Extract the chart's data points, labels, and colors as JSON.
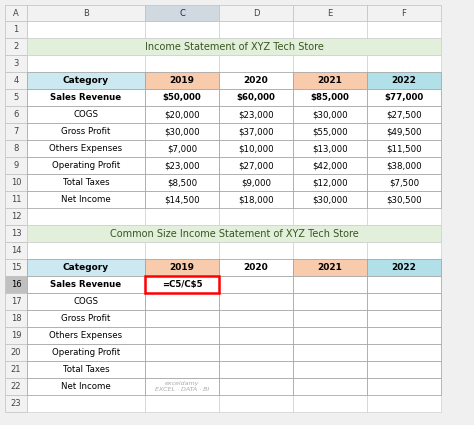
{
  "title1": "Income Statement of XYZ Tech Store",
  "title2": "Common Size Income Statement of XYZ Tech Store",
  "col_headers": [
    "Category",
    "2019",
    "2020",
    "2021",
    "2022"
  ],
  "table1_rows": [
    [
      "Sales Revenue",
      "$50,000",
      "$60,000",
      "$85,000",
      "$77,000"
    ],
    [
      "COGS",
      "$20,000",
      "$23,000",
      "$30,000",
      "$27,500"
    ],
    [
      "Gross Profit",
      "$30,000",
      "$37,000",
      "$55,000",
      "$49,500"
    ],
    [
      "Others Expenses",
      "$7,000",
      "$10,000",
      "$13,000",
      "$11,500"
    ],
    [
      "Operating Profit",
      "$23,000",
      "$27,000",
      "$42,000",
      "$38,000"
    ],
    [
      "Total Taxes",
      "$8,500",
      "$9,000",
      "$12,000",
      "$7,500"
    ],
    [
      "Net Income",
      "$14,500",
      "$18,000",
      "$30,000",
      "$30,500"
    ]
  ],
  "table2_rows": [
    [
      "Sales Revenue",
      "=C5/C$5",
      "",
      "",
      ""
    ],
    [
      "COGS",
      "",
      "",
      "",
      ""
    ],
    [
      "Gross Profit",
      "",
      "",
      "",
      ""
    ],
    [
      "Others Expenses",
      "",
      "",
      "",
      ""
    ],
    [
      "Operating Profit",
      "",
      "",
      "",
      ""
    ],
    [
      "Total Taxes",
      "",
      "",
      "",
      ""
    ],
    [
      "Net Income",
      "",
      "",
      "",
      ""
    ]
  ],
  "header_bg_category": "#cce8f0",
  "header_bg_2019": "#f8cbad",
  "header_bg_2020": "#ffffff",
  "header_bg_2021": "#f8cbad",
  "header_bg_2022": "#b2e0e8",
  "title_bg": "#e2efda",
  "title_text_color": "#375623",
  "row_num_bg": "#f2f2f2",
  "row_num_selected_bg": "#c0c0c0",
  "col_header_bg": "#f2f2f2",
  "col_header_selected_bg": "#d0d8e0",
  "grid_color": "#d0d0d0",
  "border_color": "#a0a0a0",
  "formula_cell_border_color": "#ff0000",
  "excel_col_letters": [
    "A",
    "B",
    "C",
    "D",
    "E",
    "F"
  ],
  "watermark_text": "exceldamy",
  "watermark_sub": "EXCEL · DATA · BI",
  "fig_bg": "#ffffff",
  "outer_bg": "#f0f0f0"
}
